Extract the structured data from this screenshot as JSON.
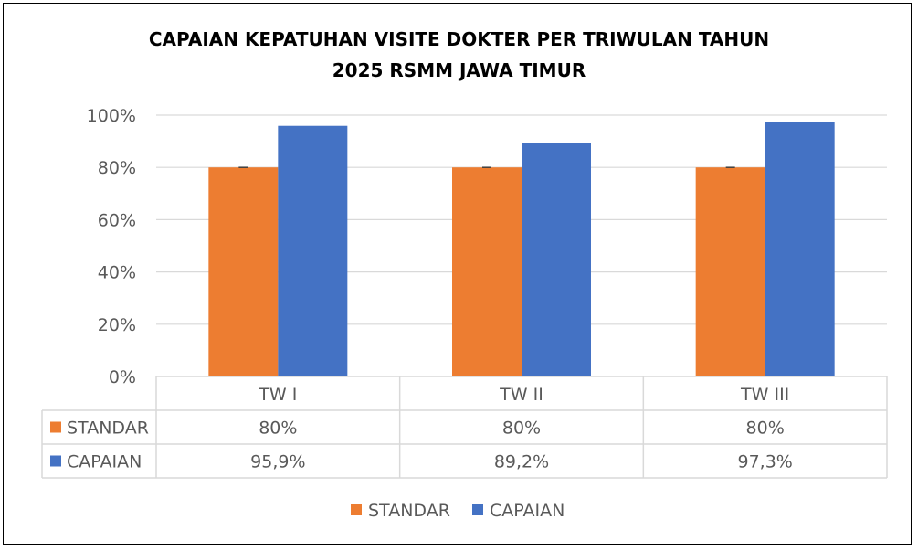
{
  "chart_data": {
    "type": "bar",
    "title_line1": "CAPAIAN KEPATUHAN VISITE DOKTER PER TRIWULAN TAHUN",
    "title_line2": "2025 RSMM JAWA TIMUR",
    "categories": [
      "TW I",
      "TW II",
      "TW III"
    ],
    "series": [
      {
        "name": "STANDAR",
        "values": [
          80,
          80,
          80
        ],
        "labels": [
          "80%",
          "80%",
          "80%"
        ],
        "color": "#ED7D31"
      },
      {
        "name": "CAPAIAN",
        "values": [
          95.9,
          89.2,
          97.3
        ],
        "labels": [
          "95,9%",
          "89,2%",
          "97,3%"
        ],
        "color": "#4472C4"
      }
    ],
    "ylim": [
      0,
      100
    ],
    "yticks": [
      "0%",
      "20%",
      "40%",
      "60%",
      "80%",
      "100%"
    ],
    "grid": true,
    "legend_position": "bottom",
    "data_table": true
  }
}
